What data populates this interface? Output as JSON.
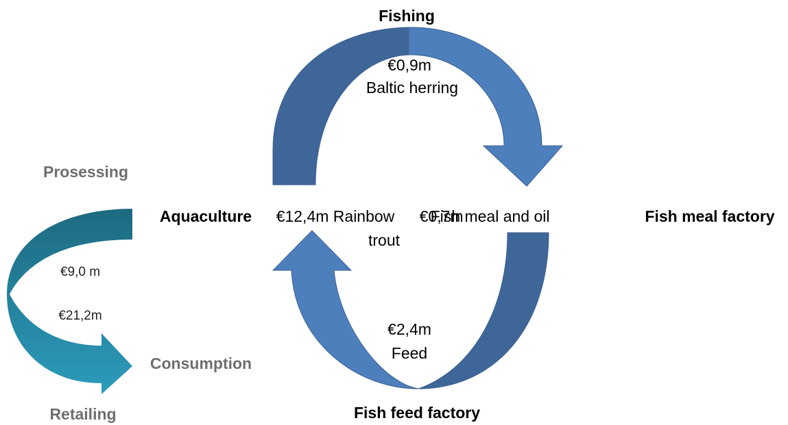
{
  "nodes": [
    {
      "label": "Fishing"
    },
    {
      "label": "Fish meal factory"
    },
    {
      "label": "Fish feed factory"
    },
    {
      "label": "Aquaculture"
    },
    {
      "label": "Prosessing"
    },
    {
      "label": "Consumption"
    },
    {
      "label": "Retailing"
    }
  ],
  "flows": [
    {
      "value": "€0,9m",
      "product": "Baltic herring"
    },
    {
      "value": "€0,7m",
      "product": "Fish meal and oil"
    },
    {
      "value": "€2,4m",
      "product": "Feed"
    },
    {
      "value": "€12,4m Rainbow",
      "product": "trout"
    },
    {
      "value": "€9,0 m"
    },
    {
      "value": "€21,2m"
    }
  ]
}
